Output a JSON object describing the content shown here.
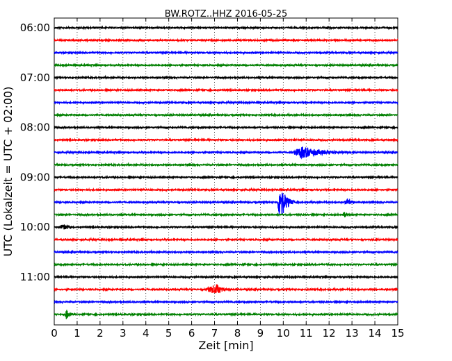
{
  "chart_data": {
    "type": "line",
    "title": "BW.ROTZ..HHZ 2016-05-25",
    "xlabel": "Zeit  [min]",
    "ylabel": "UTC (Lokalzeit = UTC + 02:00)",
    "xlim": [
      0,
      15
    ],
    "x_ticks": [
      0,
      1,
      2,
      3,
      4,
      5,
      6,
      7,
      8,
      9,
      10,
      11,
      12,
      13,
      14,
      15
    ],
    "y_tick_labels": [
      "06:00",
      "07:00",
      "08:00",
      "09:00",
      "10:00",
      "11:00"
    ],
    "grid": "vertical dotted at each minute",
    "colors": [
      "#000000",
      "#ff0000",
      "#0000ff",
      "#008000"
    ],
    "trace_start_times": [
      "06:00",
      "06:15",
      "06:30",
      "06:45",
      "07:00",
      "07:15",
      "07:30",
      "07:45",
      "08:00",
      "08:15",
      "08:30",
      "08:45",
      "09:00",
      "09:15",
      "09:30",
      "09:45",
      "10:00",
      "10:15",
      "10:30",
      "10:45",
      "11:00",
      "11:15",
      "11:30",
      "11:45"
    ],
    "events": [
      {
        "trace": 10,
        "start_min": 10.4,
        "end_min": 13.0,
        "peak_min": 10.8,
        "amplitude": 8
      },
      {
        "trace": 14,
        "start_min": 9.75,
        "end_min": 10.5,
        "peak_min": 9.85,
        "amplitude": 30
      },
      {
        "trace": 14,
        "start_min": 12.65,
        "end_min": 13.2,
        "peak_min": 12.8,
        "amplitude": 5
      },
      {
        "trace": 15,
        "start_min": 12.55,
        "end_min": 12.95,
        "peak_min": 12.7,
        "amplitude": 4
      },
      {
        "trace": 16,
        "start_min": 0.15,
        "end_min": 0.9,
        "peak_min": 0.45,
        "amplitude": 4
      },
      {
        "trace": 21,
        "start_min": 6.5,
        "end_min": 7.7,
        "peak_min": 7.1,
        "amplitude": 7
      },
      {
        "trace": 23,
        "start_min": 0.45,
        "end_min": 0.7,
        "peak_min": 0.55,
        "amplitude": 8
      }
    ]
  }
}
